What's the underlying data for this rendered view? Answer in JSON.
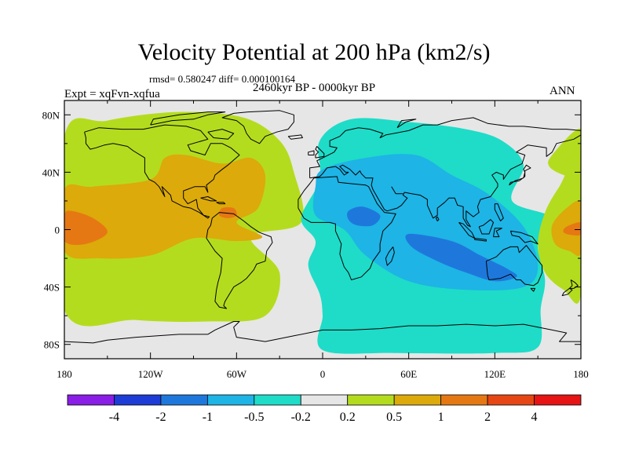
{
  "title": "Velocity Potential at 200 hPa (km2/s)",
  "stats_line": "rmsd= 0.580247 diff= 0.000100164",
  "experiment": "Expt = xqFvn-xqfua",
  "period": "2460kyr BP - 0000kyr BP",
  "season": "ANN",
  "chart_data": {
    "type": "heatmap",
    "title": "Velocity Potential at 200 hPa (km2/s)",
    "subtitle": "2460kyr BP - 0000kyr BP",
    "variable": "Velocity Potential",
    "units": "km2/s",
    "xlim": [
      -180,
      180
    ],
    "ylim": [
      -90,
      90
    ],
    "x_ticks": [
      -180,
      -120,
      -60,
      0,
      60,
      120,
      180
    ],
    "x_tick_labels": [
      "180",
      "120W",
      "60W",
      "0",
      "60E",
      "120E",
      "180"
    ],
    "y_ticks": [
      80,
      40,
      0,
      -40,
      -80
    ],
    "y_tick_labels": [
      "80N",
      "40N",
      "0",
      "40S",
      "80S"
    ],
    "colorbar": {
      "colors": [
        "#8a1ee6",
        "#1e3cd6",
        "#1e78dc",
        "#1eb4e6",
        "#1edcc8",
        "#e6e6e6",
        "#b4dc1e",
        "#dcaa0a",
        "#e67814",
        "#e64614",
        "#e61414"
      ],
      "levels": [
        -4,
        -2,
        -1,
        -0.5,
        -0.2,
        0.2,
        0.5,
        1,
        2,
        4
      ],
      "level_labels": [
        "-4",
        "-2",
        "-1",
        "-0.5",
        "-0.2",
        "0.2",
        "0.5",
        "1",
        "2",
        "4"
      ]
    },
    "features": [
      {
        "name": "west-positive-outer",
        "class": 6,
        "points": [
          [
            -180,
            65
          ],
          [
            -150,
            76
          ],
          [
            -100,
            82
          ],
          [
            -55,
            78
          ],
          [
            -30,
            62
          ],
          [
            -20,
            40
          ],
          [
            -15,
            5
          ],
          [
            -50,
            -5
          ],
          [
            -30,
            -30
          ],
          [
            -40,
            -60
          ],
          [
            -80,
            -64
          ],
          [
            -130,
            -63
          ],
          [
            -180,
            -56
          ]
        ]
      },
      {
        "name": "west-positive-inner",
        "class": 7,
        "points": [
          [
            -180,
            28
          ],
          [
            -160,
            30
          ],
          [
            -120,
            35
          ],
          [
            -110,
            50
          ],
          [
            -95,
            52
          ],
          [
            -70,
            46
          ],
          [
            -50,
            50
          ],
          [
            -40,
            38
          ],
          [
            -45,
            15
          ],
          [
            -60,
            5
          ],
          [
            -42,
            -5
          ],
          [
            -60,
            -8
          ],
          [
            -90,
            -6
          ],
          [
            -120,
            -18
          ],
          [
            -155,
            -20
          ],
          [
            -180,
            -15
          ]
        ]
      },
      {
        "name": "west-max-pacific",
        "class": 8,
        "points": [
          [
            -180,
            10
          ],
          [
            -175,
            13
          ],
          [
            -160,
            8
          ],
          [
            -150,
            -2
          ],
          [
            -165,
            -10
          ],
          [
            -180,
            -8
          ]
        ]
      },
      {
        "name": "west-max-caribbean",
        "class": 8,
        "points": [
          [
            -70,
            15
          ],
          [
            -62,
            15
          ],
          [
            -60,
            10
          ],
          [
            -66,
            8
          ],
          [
            -72,
            10
          ]
        ]
      },
      {
        "name": "east-negative-outer",
        "class": 4,
        "points": [
          [
            -2,
            62
          ],
          [
            20,
            77
          ],
          [
            60,
            75
          ],
          [
            100,
            70
          ],
          [
            125,
            62
          ],
          [
            140,
            45
          ],
          [
            132,
            20
          ],
          [
            160,
            8
          ],
          [
            150,
            -10
          ],
          [
            155,
            -35
          ],
          [
            152,
            -55
          ],
          [
            150,
            -82
          ],
          [
            120,
            -86
          ],
          [
            50,
            -86
          ],
          [
            0,
            -84
          ],
          [
            0,
            -60
          ],
          [
            -2,
            -45
          ],
          [
            -10,
            -25
          ],
          [
            -5,
            -8
          ],
          [
            -15,
            8
          ],
          [
            -2,
            35
          ]
        ]
      },
      {
        "name": "east-negative-inner",
        "class": 3,
        "points": [
          [
            0,
            42
          ],
          [
            30,
            50
          ],
          [
            65,
            52
          ],
          [
            90,
            38
          ],
          [
            115,
            25
          ],
          [
            140,
            2
          ],
          [
            150,
            -25
          ],
          [
            140,
            -40
          ],
          [
            100,
            -42
          ],
          [
            60,
            -36
          ],
          [
            30,
            -18
          ],
          [
            15,
            0
          ],
          [
            -5,
            10
          ],
          [
            -5,
            30
          ]
        ]
      },
      {
        "name": "east-min-africa",
        "class": 2,
        "points": [
          [
            18,
            13
          ],
          [
            28,
            16
          ],
          [
            40,
            10
          ],
          [
            35,
            3
          ],
          [
            24,
            3
          ],
          [
            18,
            7
          ]
        ]
      },
      {
        "name": "east-min-indian",
        "class": 2,
        "points": [
          [
            60,
            -3
          ],
          [
            90,
            -8
          ],
          [
            110,
            -18
          ],
          [
            130,
            -28
          ],
          [
            135,
            -33
          ],
          [
            120,
            -36
          ],
          [
            100,
            -30
          ],
          [
            80,
            -22
          ],
          [
            62,
            -12
          ]
        ]
      },
      {
        "name": "dateline-positive",
        "class": 6,
        "points": [
          [
            180,
            50
          ],
          [
            165,
            30
          ],
          [
            155,
            12
          ],
          [
            150,
            -10
          ],
          [
            155,
            -30
          ],
          [
            168,
            -42
          ],
          [
            180,
            -45
          ]
        ]
      },
      {
        "name": "dateline-positive-inner",
        "class": 7,
        "points": [
          [
            180,
            18
          ],
          [
            170,
            15
          ],
          [
            160,
            3
          ],
          [
            162,
            -10
          ],
          [
            172,
            -15
          ],
          [
            180,
            -16
          ]
        ]
      },
      {
        "name": "dateline-max",
        "class": 8,
        "points": [
          [
            180,
            5
          ],
          [
            170,
            2
          ],
          [
            168,
            -2
          ],
          [
            175,
            -4
          ],
          [
            180,
            -3
          ]
        ]
      },
      {
        "name": "northeast-positive",
        "class": 6,
        "points": [
          [
            180,
            70
          ],
          [
            160,
            52
          ],
          [
            158,
            44
          ],
          [
            168,
            38
          ],
          [
            180,
            36
          ]
        ]
      }
    ]
  }
}
